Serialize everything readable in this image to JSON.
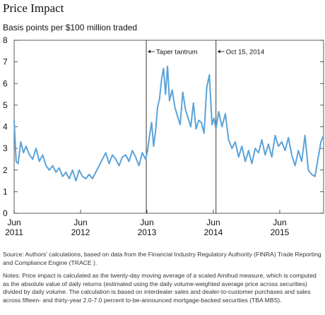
{
  "title": "Price Impact",
  "subtitle": "Basis points per $100 million traded",
  "source": "Source: Authors' calculations, based on data from the Financial Industry Regulatory Authority (FINRA) Trade Reporting and Compliance Engine (TRACE ).",
  "notes": "Notes: Price impact is calculated as the twenty-day moving average of a scaled Amihud measure, which is computed as the absolute value of daily returns (estimated using the daily volume-weighted average price across securities) divided by daily volume. The calculation is based on interdealer sales and dealer-to-customer purchases and sales across fifteen- and thirty-year 2.0-7.0 percent to-be-announced mortgage-backed securities (TBA MBS).",
  "chart_data": {
    "type": "line",
    "title": "Price Impact",
    "ylabel": "Basis points per $100 million traded",
    "xlabel": "",
    "ylim": [
      0,
      8
    ],
    "yticks": [
      0,
      1,
      2,
      3,
      4,
      5,
      6,
      7,
      8
    ],
    "xlim": [
      2011.42,
      2016.08
    ],
    "xticks": [
      {
        "x": 2011.42,
        "top": "Jun",
        "bottom": "2011"
      },
      {
        "x": 2012.42,
        "top": "Jun",
        "bottom": "2012"
      },
      {
        "x": 2013.42,
        "top": "Jun",
        "bottom": "2013"
      },
      {
        "x": 2014.42,
        "top": "Jun",
        "bottom": "2014"
      },
      {
        "x": 2015.42,
        "top": "Jun",
        "bottom": "2015"
      }
    ],
    "line_color": "#5ba3d9",
    "annotations": [
      {
        "x": 2013.41,
        "label": "Taper tantrum"
      },
      {
        "x": 2014.46,
        "label": "Oct 15, 2014"
      }
    ],
    "series": [
      {
        "x": [
          2011.42,
          2011.45,
          2011.48,
          2011.52,
          2011.56,
          2011.6,
          2011.65,
          2011.7,
          2011.75,
          2011.8,
          2011.85,
          2011.9,
          2011.95,
          2012.0,
          2012.05,
          2012.1,
          2012.15,
          2012.2,
          2012.25,
          2012.3,
          2012.35,
          2012.4,
          2012.45,
          2012.5,
          2012.55,
          2012.6,
          2012.65,
          2012.7,
          2012.75,
          2012.8,
          2012.85,
          2012.9,
          2012.95,
          2013.0,
          2013.05,
          2013.1,
          2013.15,
          2013.2,
          2013.25,
          2013.3,
          2013.35,
          2013.4,
          2013.43,
          2013.46,
          2013.49,
          2013.52,
          2013.55,
          2013.58,
          2013.61,
          2013.64,
          2013.67,
          2013.7,
          2013.73,
          2013.76,
          2013.8,
          2013.84,
          2013.88,
          2013.92,
          2013.96,
          2014.0,
          2014.04,
          2014.08,
          2014.12,
          2014.16,
          2014.2,
          2014.24,
          2014.28,
          2014.32,
          2014.36,
          2014.4,
          2014.43,
          2014.46,
          2014.5,
          2014.55,
          2014.6,
          2014.65,
          2014.7,
          2014.75,
          2014.8,
          2014.85,
          2014.9,
          2014.95,
          2015.0,
          2015.05,
          2015.1,
          2015.15,
          2015.2,
          2015.25,
          2015.3,
          2015.35,
          2015.4,
          2015.45,
          2015.5,
          2015.55,
          2015.6,
          2015.65,
          2015.7,
          2015.75,
          2015.8,
          2015.85,
          2015.9,
          2015.95,
          2016.0,
          2016.04,
          2016.08
        ],
        "values": [
          4.3,
          2.4,
          2.3,
          3.3,
          2.8,
          3.1,
          2.7,
          2.5,
          3.0,
          2.4,
          2.7,
          2.2,
          2.0,
          2.2,
          1.9,
          2.1,
          1.7,
          1.9,
          1.6,
          2.0,
          1.5,
          2.0,
          1.7,
          1.6,
          1.8,
          1.6,
          1.9,
          2.2,
          2.5,
          2.8,
          2.3,
          2.7,
          2.5,
          2.2,
          2.6,
          2.7,
          2.4,
          2.9,
          2.6,
          2.2,
          2.8,
          2.5,
          2.9,
          3.6,
          4.2,
          3.1,
          3.8,
          4.9,
          5.3,
          6.2,
          6.7,
          5.5,
          6.8,
          5.2,
          5.7,
          4.9,
          4.5,
          4.1,
          5.6,
          4.8,
          4.4,
          4.0,
          5.1,
          3.9,
          4.3,
          4.2,
          3.7,
          5.8,
          6.4,
          4.1,
          4.4,
          3.9,
          4.7,
          4.0,
          4.6,
          3.4,
          3.0,
          3.3,
          2.6,
          3.1,
          2.4,
          2.9,
          2.3,
          3.0,
          2.8,
          3.4,
          2.7,
          3.2,
          2.6,
          3.6,
          3.1,
          3.3,
          2.9,
          3.5,
          2.7,
          2.2,
          2.9,
          2.4,
          3.6,
          2.0,
          1.8,
          1.7,
          2.6,
          3.3,
          3.6
        ]
      }
    ]
  }
}
